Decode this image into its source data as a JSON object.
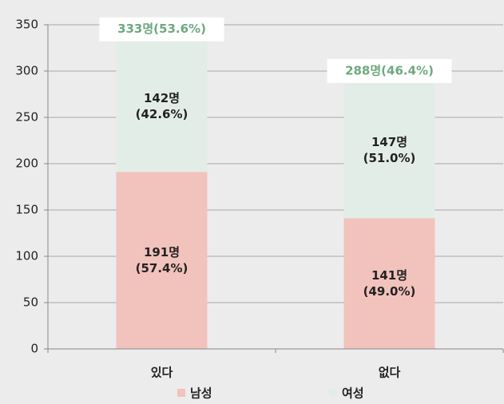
{
  "chart_data": {
    "type": "stacked_bar",
    "categories": [
      "있다",
      "없다"
    ],
    "series": [
      {
        "name": "남성",
        "color": "#f2c2bc",
        "values": [
          191,
          141
        ],
        "value_labels": [
          "191명\n(57.4%)",
          "141명\n(49.0%)"
        ]
      },
      {
        "name": "여성",
        "color": "#e3ede7",
        "values": [
          142,
          147
        ],
        "value_labels": [
          "142명\n(42.6%)",
          "147명\n(51.0%)"
        ]
      }
    ],
    "total_labels": [
      "333명(53.6%)",
      "288명(46.4%)"
    ],
    "ylim": [
      0,
      350
    ],
    "yticks": [
      0,
      50,
      100,
      150,
      200,
      250,
      300,
      350
    ],
    "grid": true
  }
}
